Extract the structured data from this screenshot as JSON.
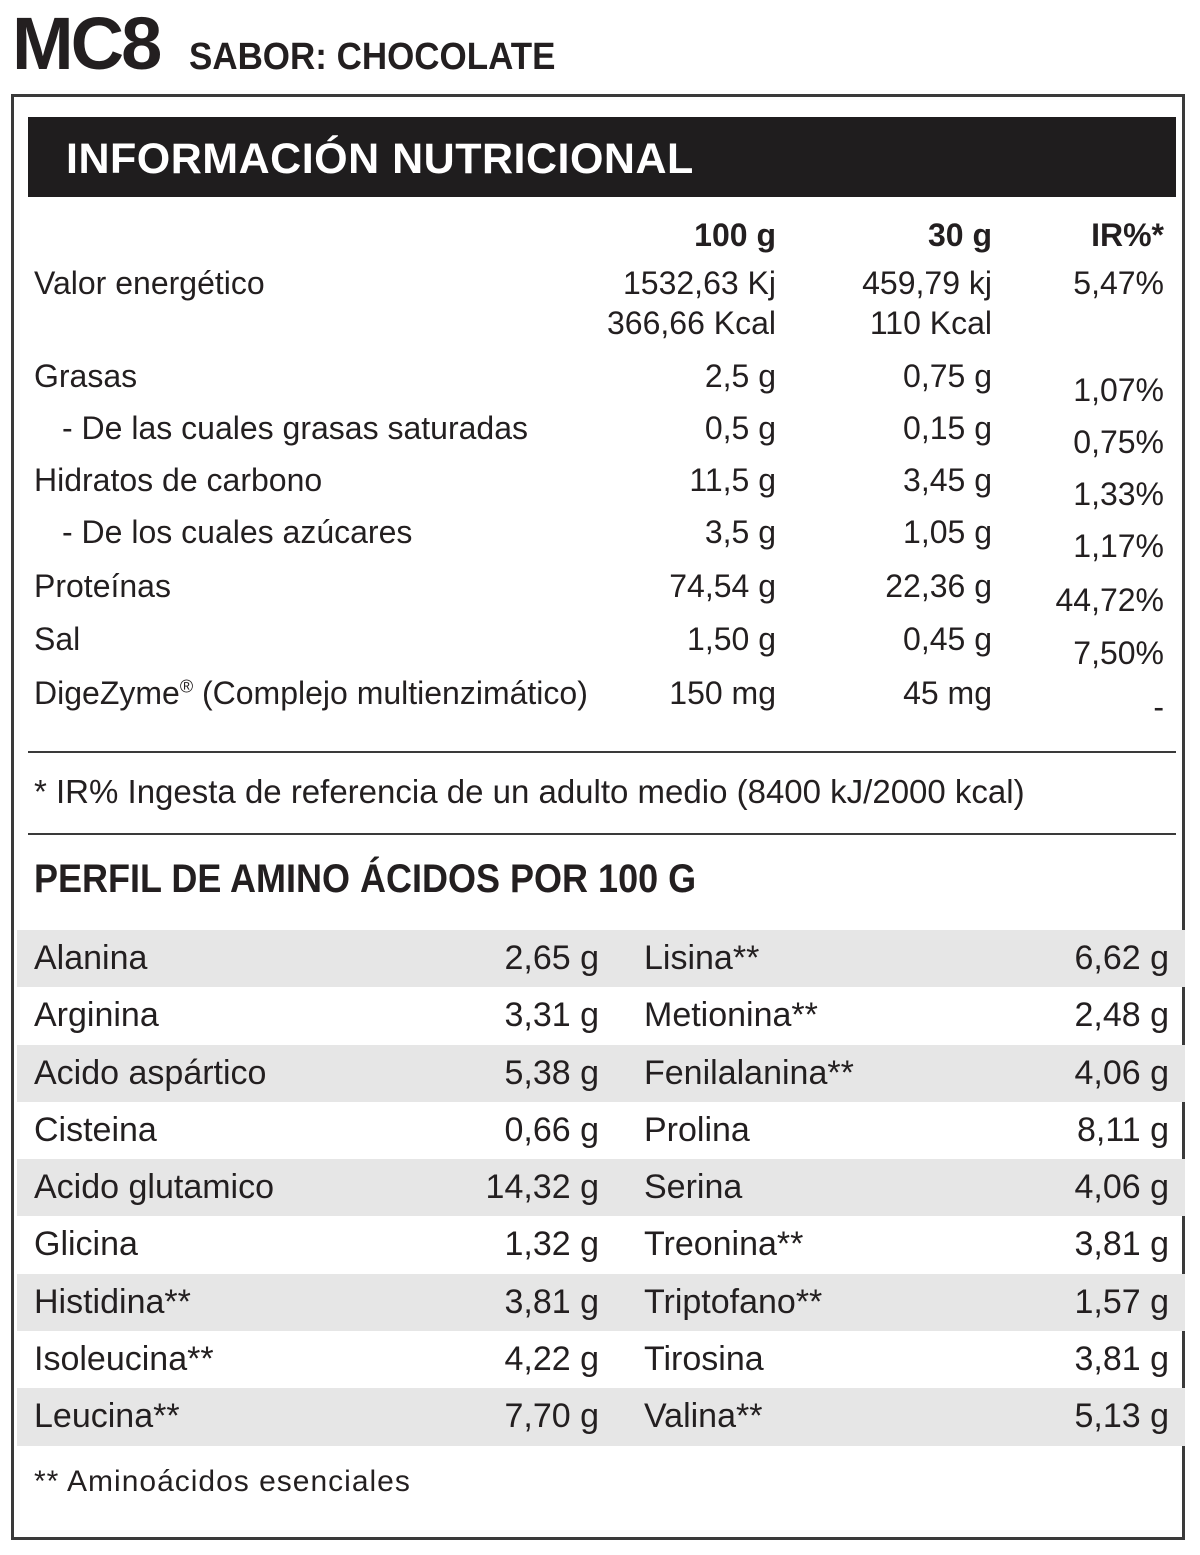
{
  "brand": {
    "name": "MC8",
    "flavor": "SABOR: CHOCOLATE"
  },
  "nutrition": {
    "title": "INFORMACIÓN NUTRICIONAL",
    "columns": [
      "100 g",
      "30 g",
      "IR%*"
    ],
    "rows": [
      {
        "label": "Valor energético",
        "v100": "1532,63 Kj",
        "v100b": "366,66 Kcal",
        "v30": "459,79 kj",
        "v30b": "110 Kcal",
        "ir": "5,47%"
      },
      {
        "label": "Grasas",
        "v100": "2,5 g",
        "v30": "0,75 g",
        "ir": "1,07%"
      },
      {
        "label": "- De las cuales grasas saturadas",
        "v100": "0,5 g",
        "v30": "0,15 g",
        "ir": "0,75%"
      },
      {
        "label": "Hidratos de carbono",
        "v100": "11,5 g",
        "v30": "3,45 g",
        "ir": "1,33%"
      },
      {
        "label": "- De los cuales azúcares",
        "v100": "3,5 g",
        "v30": "1,05 g",
        "ir": "1,17%"
      },
      {
        "label": "Proteínas",
        "v100": "74,54 g",
        "v30": "22,36 g",
        "ir": "44,72%"
      },
      {
        "label": "Sal",
        "v100": "1,50 g",
        "v30": "0,45 g",
        "ir": "7,50%"
      },
      {
        "label": "DigeZyme",
        "label_mark": "®",
        "label_rest": " (Complejo multienzimático)",
        "v100": "150 mg",
        "v30": "45 mg",
        "ir": "-"
      }
    ],
    "ir_note": "* IR% Ingesta de referencia de un adulto medio (8400 kJ/2000 kcal)"
  },
  "amino": {
    "title": "PERFIL DE AMINO ÁCIDOS POR 100 G",
    "rows": [
      {
        "left_name": "Alanina",
        "left_val": "2,65 g",
        "right_name": "Lisina**",
        "right_val": "6,62 g"
      },
      {
        "left_name": "Arginina",
        "left_val": "3,31 g",
        "right_name": "Metionina**",
        "right_val": "2,48 g"
      },
      {
        "left_name": "Acido aspártico",
        "left_val": "5,38 g",
        "right_name": "Fenilalanina**",
        "right_val": "4,06 g"
      },
      {
        "left_name": "Cisteina",
        "left_val": "0,66 g",
        "right_name": "Prolina",
        "right_val": "8,11 g"
      },
      {
        "left_name": "Acido glutamico",
        "left_val": "14,32 g",
        "right_name": "Serina",
        "right_val": "4,06 g"
      },
      {
        "left_name": "Glicina",
        "left_val": "1,32 g",
        "right_name": "Treonina**",
        "right_val": "3,81 g"
      },
      {
        "left_name": "Histidina**",
        "left_val": "3,81 g",
        "right_name": "Triptofano**",
        "right_val": "1,57 g"
      },
      {
        "left_name": "Isoleucina**",
        "left_val": "4,22 g",
        "right_name": "Tirosina",
        "right_val": "3,81 g"
      },
      {
        "left_name": "Leucina**",
        "left_val": "7,70 g",
        "right_name": "Valina**",
        "right_val": "5,13 g"
      }
    ],
    "footnote": "** Aminoácidos esenciales"
  }
}
